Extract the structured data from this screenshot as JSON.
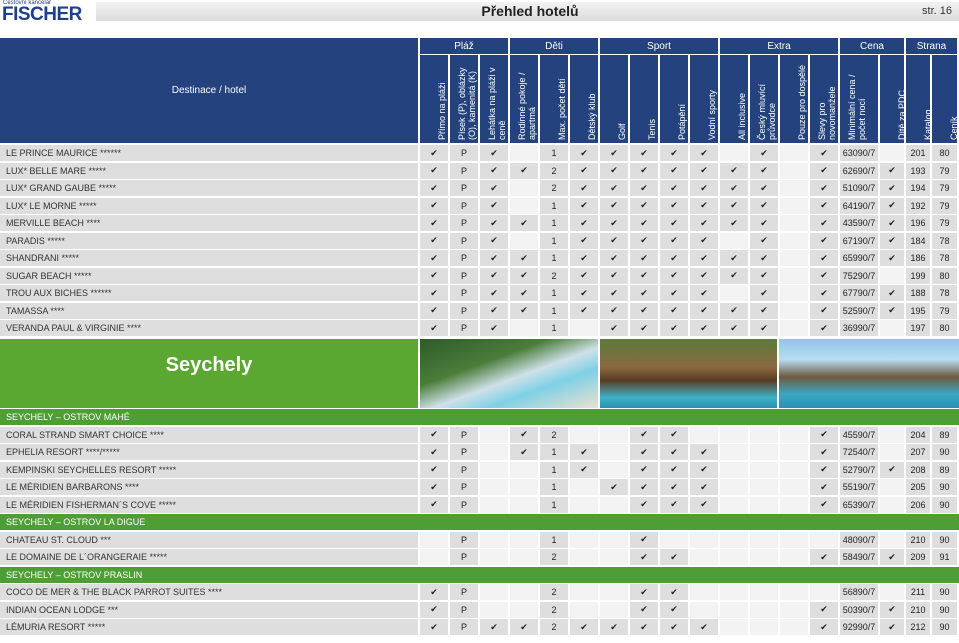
{
  "header": {
    "brand_small": "Cestovní kancelář",
    "brand": "FISCHER",
    "title": "Přehled hotelů",
    "page": "str. 16"
  },
  "table": {
    "dest_header": "Destinace / hotel",
    "groups": [
      {
        "label": "Pláž",
        "columns": [
          "Přímo na pláži",
          "Písek (P), oblázky (O), kamenitá (K)",
          "Lehátka na pláži v ceně"
        ]
      },
      {
        "label": "Děti",
        "columns": [
          "Rodinné pokoje / apartmá",
          "Max. počet dětí",
          "Dětský klub"
        ]
      },
      {
        "label": "Sport",
        "columns": [
          "Golf",
          "Tenis",
          "Potápění",
          "Vodní sporty"
        ]
      },
      {
        "label": "Extra",
        "columns": [
          "All inclusive",
          "Český mluvící průvodce",
          "Pouze pro dospělé",
          "Slevy pro novomanžele"
        ]
      },
      {
        "label": "Cena",
        "columns": [
          "Minimální cena / počet nocí",
          "Dítě za PDC"
        ]
      },
      {
        "label": "Strana",
        "columns": [
          "Katalog",
          "Ceník"
        ]
      }
    ],
    "blocks": [
      {
        "rows": [
          {
            "name": "LE PRINCE MAURICE ******",
            "cells": [
              "✔",
              "P",
              "✔",
              null,
              "1",
              "✔",
              "✔",
              "✔",
              "✔",
              "✔",
              null,
              "✔",
              null,
              "✔",
              "63090/7",
              null,
              "201",
              "80"
            ]
          },
          {
            "name": "LUX* BELLE MARE *****",
            "cells": [
              "✔",
              "P",
              "✔",
              "✔",
              "2",
              "✔",
              "✔",
              "✔",
              "✔",
              "✔",
              "✔",
              "✔",
              null,
              "✔",
              "62690/7",
              "✔",
              "193",
              "79"
            ]
          },
          {
            "name": "LUX* GRAND GAUBE *****",
            "cells": [
              "✔",
              "P",
              "✔",
              null,
              "2",
              "✔",
              "✔",
              "✔",
              "✔",
              "✔",
              "✔",
              "✔",
              null,
              "✔",
              "51090/7",
              "✔",
              "194",
              "79"
            ]
          },
          {
            "name": "LUX* LE MORNE *****",
            "cells": [
              "✔",
              "P",
              "✔",
              null,
              "1",
              "✔",
              "✔",
              "✔",
              "✔",
              "✔",
              "✔",
              "✔",
              null,
              "✔",
              "64190/7",
              "✔",
              "192",
              "79"
            ]
          },
          {
            "name": "MERVILLE BEACH ****",
            "cells": [
              "✔",
              "P",
              "✔",
              "✔",
              "1",
              "✔",
              "✔",
              "✔",
              "✔",
              "✔",
              "✔",
              "✔",
              null,
              "✔",
              "43590/7",
              "✔",
              "196",
              "79"
            ]
          },
          {
            "name": "PARADIS *****",
            "cells": [
              "✔",
              "P",
              "✔",
              null,
              "1",
              "✔",
              "✔",
              "✔",
              "✔",
              "✔",
              null,
              "✔",
              null,
              "✔",
              "67190/7",
              "✔",
              "184",
              "78"
            ]
          },
          {
            "name": "SHANDRANI *****",
            "cells": [
              "✔",
              "P",
              "✔",
              "✔",
              "1",
              "✔",
              "✔",
              "✔",
              "✔",
              "✔",
              "✔",
              "✔",
              null,
              "✔",
              "65990/7",
              "✔",
              "186",
              "78"
            ]
          },
          {
            "name": "SUGAR BEACH *****",
            "cells": [
              "✔",
              "P",
              "✔",
              "✔",
              "2",
              "✔",
              "✔",
              "✔",
              "✔",
              "✔",
              "✔",
              "✔",
              null,
              "✔",
              "75290/7",
              null,
              "199",
              "80"
            ]
          },
          {
            "name": "TROU AUX BICHES ******",
            "cells": [
              "✔",
              "P",
              "✔",
              "✔",
              "1",
              "✔",
              "✔",
              "✔",
              "✔",
              "✔",
              null,
              "✔",
              null,
              "✔",
              "67790/7",
              "✔",
              "188",
              "78"
            ]
          },
          {
            "name": "TAMASSA ****",
            "cells": [
              "✔",
              "P",
              "✔",
              "✔",
              "1",
              "✔",
              "✔",
              "✔",
              "✔",
              "✔",
              "✔",
              "✔",
              null,
              "✔",
              "52590/7",
              "✔",
              "195",
              "79"
            ]
          },
          {
            "name": "VERANDA PAUL & VIRGINIE ****",
            "cells": [
              "✔",
              "P",
              "✔",
              null,
              "1",
              null,
              "✔",
              "✔",
              "✔",
              "✔",
              "✔",
              "✔",
              null,
              "✔",
              "36990/7",
              null,
              "197",
              "80"
            ]
          }
        ]
      },
      {
        "banner": "Seychely"
      },
      {
        "section": "SEYCHELY – OSTROV MAHÉ",
        "rows": [
          {
            "name": "CORAL STRAND SMART CHOICE ****",
            "cells": [
              "✔",
              "P",
              null,
              "✔",
              "2",
              null,
              null,
              "✔",
              "✔",
              null,
              null,
              null,
              null,
              "✔",
              "45590/7",
              null,
              "204",
              "89"
            ]
          },
          {
            "name": "EPHELIA RESORT ****/*****",
            "cells": [
              "✔",
              "P",
              null,
              "✔",
              "1",
              "✔",
              null,
              "✔",
              "✔",
              "✔",
              null,
              null,
              null,
              "✔",
              "72540/7",
              null,
              "207",
              "90"
            ]
          },
          {
            "name": "KEMPINSKI SEYCHELLES RESORT *****",
            "cells": [
              "✔",
              "P",
              null,
              null,
              "1",
              "✔",
              null,
              "✔",
              "✔",
              "✔",
              null,
              null,
              null,
              "✔",
              "52790/7",
              "✔",
              "208",
              "89"
            ]
          },
          {
            "name": "LE MÉRIDIEN BARBARONS ****",
            "cells": [
              "✔",
              "P",
              null,
              null,
              "1",
              null,
              "✔",
              "✔",
              "✔",
              "✔",
              null,
              null,
              null,
              "✔",
              "55190/7",
              null,
              "205",
              "90"
            ]
          },
          {
            "name": "LE MÉRIDIEN FISHERMAN´S COVE *****",
            "cells": [
              "✔",
              "P",
              null,
              null,
              "1",
              null,
              null,
              "✔",
              "✔",
              "✔",
              null,
              null,
              null,
              "✔",
              "65390/7",
              null,
              "206",
              "90"
            ]
          }
        ]
      },
      {
        "section": "SEYCHELY – OSTROV LA DIGUE",
        "rows": [
          {
            "name": "CHATEAU ST. CLOUD ***",
            "cells": [
              null,
              "P",
              null,
              null,
              "1",
              null,
              null,
              "✔",
              null,
              null,
              null,
              null,
              null,
              null,
              "48090/7",
              null,
              "210",
              "90"
            ]
          },
          {
            "name": "LE DOMAINE DE L´ORANGERAIE *****",
            "cells": [
              null,
              "P",
              null,
              null,
              "2",
              null,
              null,
              "✔",
              "✔",
              null,
              null,
              null,
              null,
              "✔",
              "58490/7",
              "✔",
              "209",
              "91"
            ]
          }
        ]
      },
      {
        "section": "SEYCHELY – OSTROV PRASLIN",
        "rows": [
          {
            "name": "COCO DE MER & THE BLACK PARROT SUITES ****",
            "cells": [
              "✔",
              "P",
              null,
              null,
              "2",
              null,
              null,
              "✔",
              "✔",
              null,
              null,
              null,
              null,
              null,
              "56890/7",
              null,
              "211",
              "90"
            ]
          },
          {
            "name": "INDIAN OCEAN LODGE ***",
            "cells": [
              "✔",
              "P",
              null,
              null,
              "2",
              null,
              null,
              "✔",
              "✔",
              null,
              null,
              null,
              null,
              "✔",
              "50390/7",
              "✔",
              "210",
              "90"
            ]
          },
          {
            "name": "LÉMURIA RESORT *****",
            "cells": [
              "✔",
              "P",
              "✔",
              "✔",
              "2",
              "✔",
              "✔",
              "✔",
              "✔",
              "✔",
              null,
              null,
              null,
              "✔",
              "92990/7",
              "✔",
              "212",
              "90"
            ]
          }
        ]
      }
    ]
  }
}
